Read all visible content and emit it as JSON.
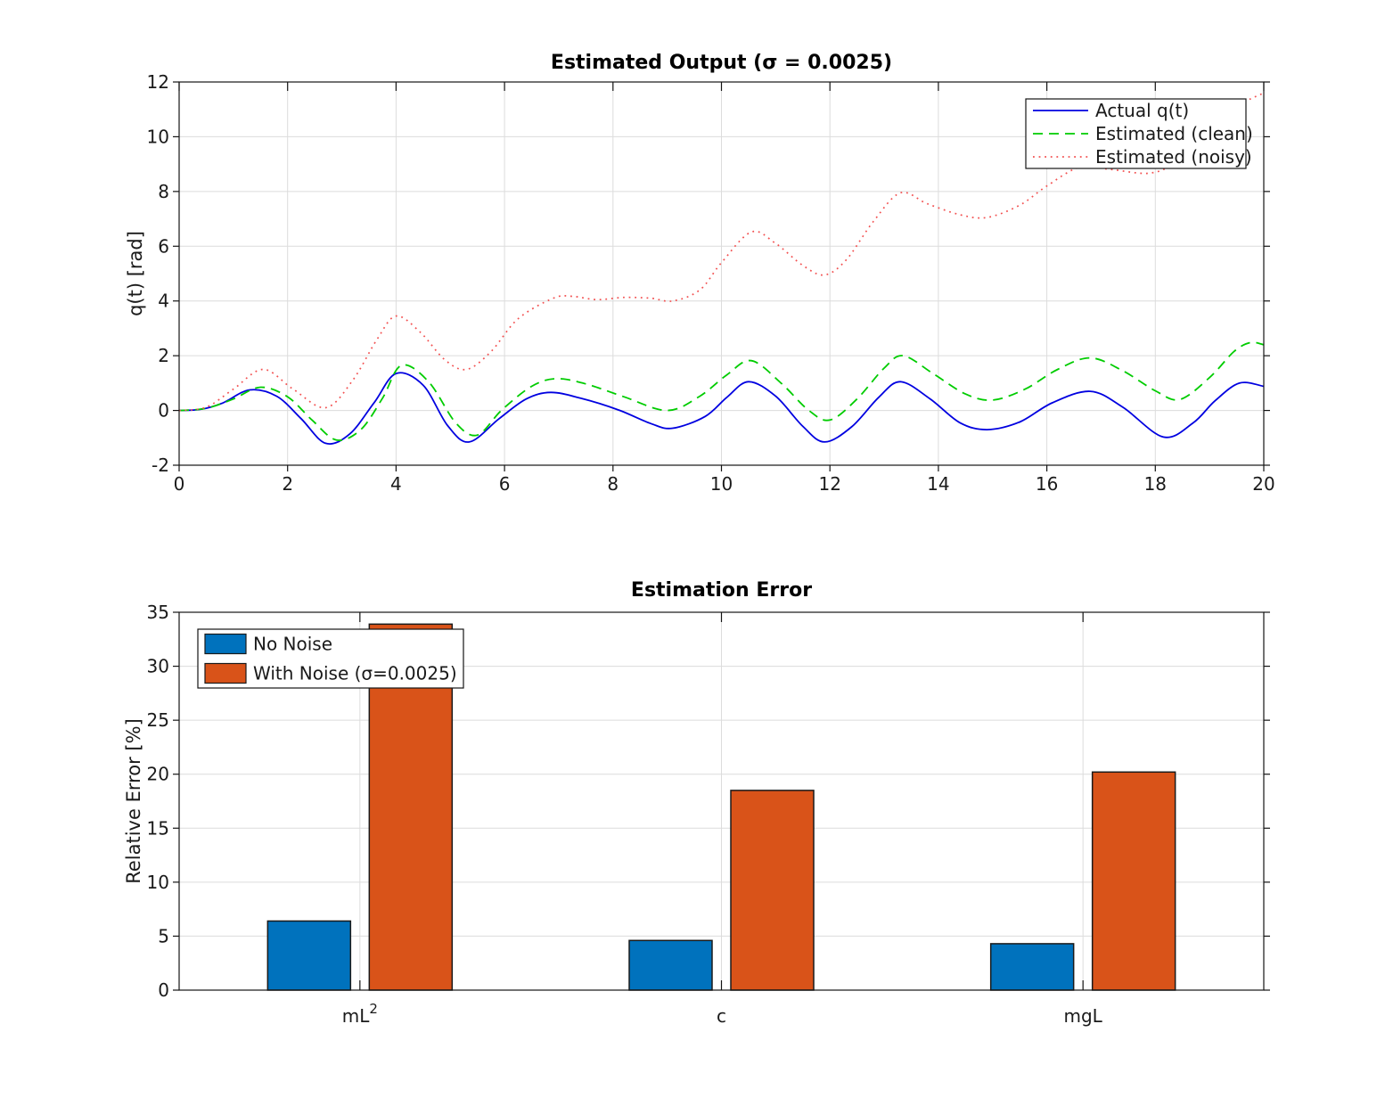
{
  "figure": {
    "background": "#ffffff"
  },
  "chart_data": [
    {
      "type": "line",
      "title": "Estimated Output (σ = 0.0025)",
      "xlabel": "",
      "ylabel": "q(t) [rad]",
      "xlim": [
        0,
        20
      ],
      "ylim": [
        -2,
        12
      ],
      "xticks": [
        0,
        2,
        4,
        6,
        8,
        10,
        12,
        14,
        16,
        18,
        20
      ],
      "yticks": [
        -2,
        0,
        2,
        4,
        6,
        8,
        10,
        12
      ],
      "grid": true,
      "legend_position": "top-right",
      "grid_color": "#dcdcdc",
      "spine_color": "#141414",
      "series": [
        {
          "name": "Actual q(t)",
          "color": "#0000e0",
          "style": "solid",
          "points": [
            [
              0,
              0
            ],
            [
              0.4,
              0.04
            ],
            [
              0.8,
              0.27
            ],
            [
              1.3,
              0.75
            ],
            [
              1.8,
              0.52
            ],
            [
              2.25,
              -0.3
            ],
            [
              2.7,
              -1.2
            ],
            [
              3.15,
              -0.85
            ],
            [
              3.6,
              0.3
            ],
            [
              4.0,
              1.35
            ],
            [
              4.5,
              0.92
            ],
            [
              4.95,
              -0.55
            ],
            [
              5.35,
              -1.15
            ],
            [
              5.9,
              -0.3
            ],
            [
              6.4,
              0.42
            ],
            [
              6.85,
              0.66
            ],
            [
              7.4,
              0.45
            ],
            [
              8.1,
              0.02
            ],
            [
              8.7,
              -0.48
            ],
            [
              9.1,
              -0.65
            ],
            [
              9.7,
              -0.22
            ],
            [
              10.1,
              0.48
            ],
            [
              10.5,
              1.05
            ],
            [
              11.0,
              0.52
            ],
            [
              11.5,
              -0.58
            ],
            [
              11.9,
              -1.15
            ],
            [
              12.4,
              -0.6
            ],
            [
              12.9,
              0.48
            ],
            [
              13.3,
              1.05
            ],
            [
              13.85,
              0.42
            ],
            [
              14.4,
              -0.45
            ],
            [
              14.9,
              -0.7
            ],
            [
              15.5,
              -0.42
            ],
            [
              16.1,
              0.28
            ],
            [
              16.8,
              0.7
            ],
            [
              17.4,
              0.12
            ],
            [
              18.15,
              -0.97
            ],
            [
              18.7,
              -0.45
            ],
            [
              19.1,
              0.35
            ],
            [
              19.55,
              1.0
            ],
            [
              20,
              0.88
            ]
          ]
        },
        {
          "name": "Estimated (clean)",
          "color": "#00cc00",
          "style": "dashed",
          "points": [
            [
              0,
              0
            ],
            [
              0.5,
              0.08
            ],
            [
              1.0,
              0.42
            ],
            [
              1.5,
              0.85
            ],
            [
              2.0,
              0.5
            ],
            [
              2.45,
              -0.35
            ],
            [
              2.9,
              -1.08
            ],
            [
              3.35,
              -0.7
            ],
            [
              3.75,
              0.45
            ],
            [
              4.1,
              1.65
            ],
            [
              4.6,
              1.05
            ],
            [
              5.1,
              -0.45
            ],
            [
              5.5,
              -0.9
            ],
            [
              5.95,
              0.02
            ],
            [
              6.5,
              0.88
            ],
            [
              6.95,
              1.16
            ],
            [
              7.5,
              0.97
            ],
            [
              8.2,
              0.5
            ],
            [
              9.0,
              0.0
            ],
            [
              9.6,
              0.52
            ],
            [
              10.1,
              1.3
            ],
            [
              10.55,
              1.82
            ],
            [
              11.1,
              1.0
            ],
            [
              11.6,
              0.02
            ],
            [
              12.0,
              -0.35
            ],
            [
              12.5,
              0.42
            ],
            [
              13.0,
              1.55
            ],
            [
              13.35,
              2.0
            ],
            [
              13.9,
              1.35
            ],
            [
              14.5,
              0.6
            ],
            [
              15.0,
              0.38
            ],
            [
              15.6,
              0.78
            ],
            [
              16.2,
              1.5
            ],
            [
              16.8,
              1.92
            ],
            [
              17.4,
              1.45
            ],
            [
              18.0,
              0.72
            ],
            [
              18.45,
              0.4
            ],
            [
              19.0,
              1.2
            ],
            [
              19.45,
              2.15
            ],
            [
              19.75,
              2.48
            ],
            [
              20,
              2.4
            ]
          ]
        },
        {
          "name": "Estimated (noisy)",
          "color": "#f25050",
          "style": "dotted",
          "points": [
            [
              0,
              0
            ],
            [
              0.5,
              0.12
            ],
            [
              1.0,
              0.78
            ],
            [
              1.55,
              1.5
            ],
            [
              2.1,
              0.78
            ],
            [
              2.7,
              0.1
            ],
            [
              3.2,
              1.1
            ],
            [
              3.65,
              2.6
            ],
            [
              4.0,
              3.45
            ],
            [
              4.45,
              2.85
            ],
            [
              4.9,
              1.85
            ],
            [
              5.3,
              1.5
            ],
            [
              5.75,
              2.15
            ],
            [
              6.25,
              3.35
            ],
            [
              6.9,
              4.1
            ],
            [
              7.25,
              4.17
            ],
            [
              7.7,
              4.05
            ],
            [
              8.2,
              4.13
            ],
            [
              8.7,
              4.1
            ],
            [
              9.1,
              4.0
            ],
            [
              9.6,
              4.4
            ],
            [
              10.0,
              5.4
            ],
            [
              10.55,
              6.52
            ],
            [
              11.0,
              6.1
            ],
            [
              11.5,
              5.3
            ],
            [
              11.9,
              4.95
            ],
            [
              12.3,
              5.5
            ],
            [
              12.8,
              6.9
            ],
            [
              13.3,
              7.95
            ],
            [
              13.8,
              7.55
            ],
            [
              14.4,
              7.15
            ],
            [
              14.9,
              7.05
            ],
            [
              15.5,
              7.5
            ],
            [
              16.0,
              8.2
            ],
            [
              16.6,
              8.88
            ],
            [
              17.2,
              8.8
            ],
            [
              17.9,
              8.67
            ],
            [
              18.4,
              9.1
            ],
            [
              19.0,
              10.2
            ],
            [
              19.5,
              11.1
            ],
            [
              20,
              11.6
            ]
          ]
        }
      ]
    },
    {
      "type": "bar",
      "title": "Estimation Error",
      "xlabel": "",
      "ylabel": "Relative Error [%]",
      "ylim": [
        0,
        35
      ],
      "yticks": [
        0,
        5,
        10,
        15,
        20,
        25,
        30,
        35
      ],
      "grid": true,
      "legend_position": "top-left",
      "grid_color": "#dcdcdc",
      "spine_color": "#141414",
      "bar_edge_color": "#1a1a1a",
      "categories": [
        {
          "base": "mL",
          "sup": "2"
        },
        {
          "base": "c",
          "sup": ""
        },
        {
          "base": "mgL",
          "sup": ""
        }
      ],
      "series": [
        {
          "name": "No Noise",
          "color": "#0072BD",
          "values": [
            6.4,
            4.6,
            4.3
          ]
        },
        {
          "name": "With Noise (σ=0.0025)",
          "color": "#D95319",
          "values": [
            33.9,
            18.5,
            20.2
          ]
        }
      ]
    }
  ]
}
